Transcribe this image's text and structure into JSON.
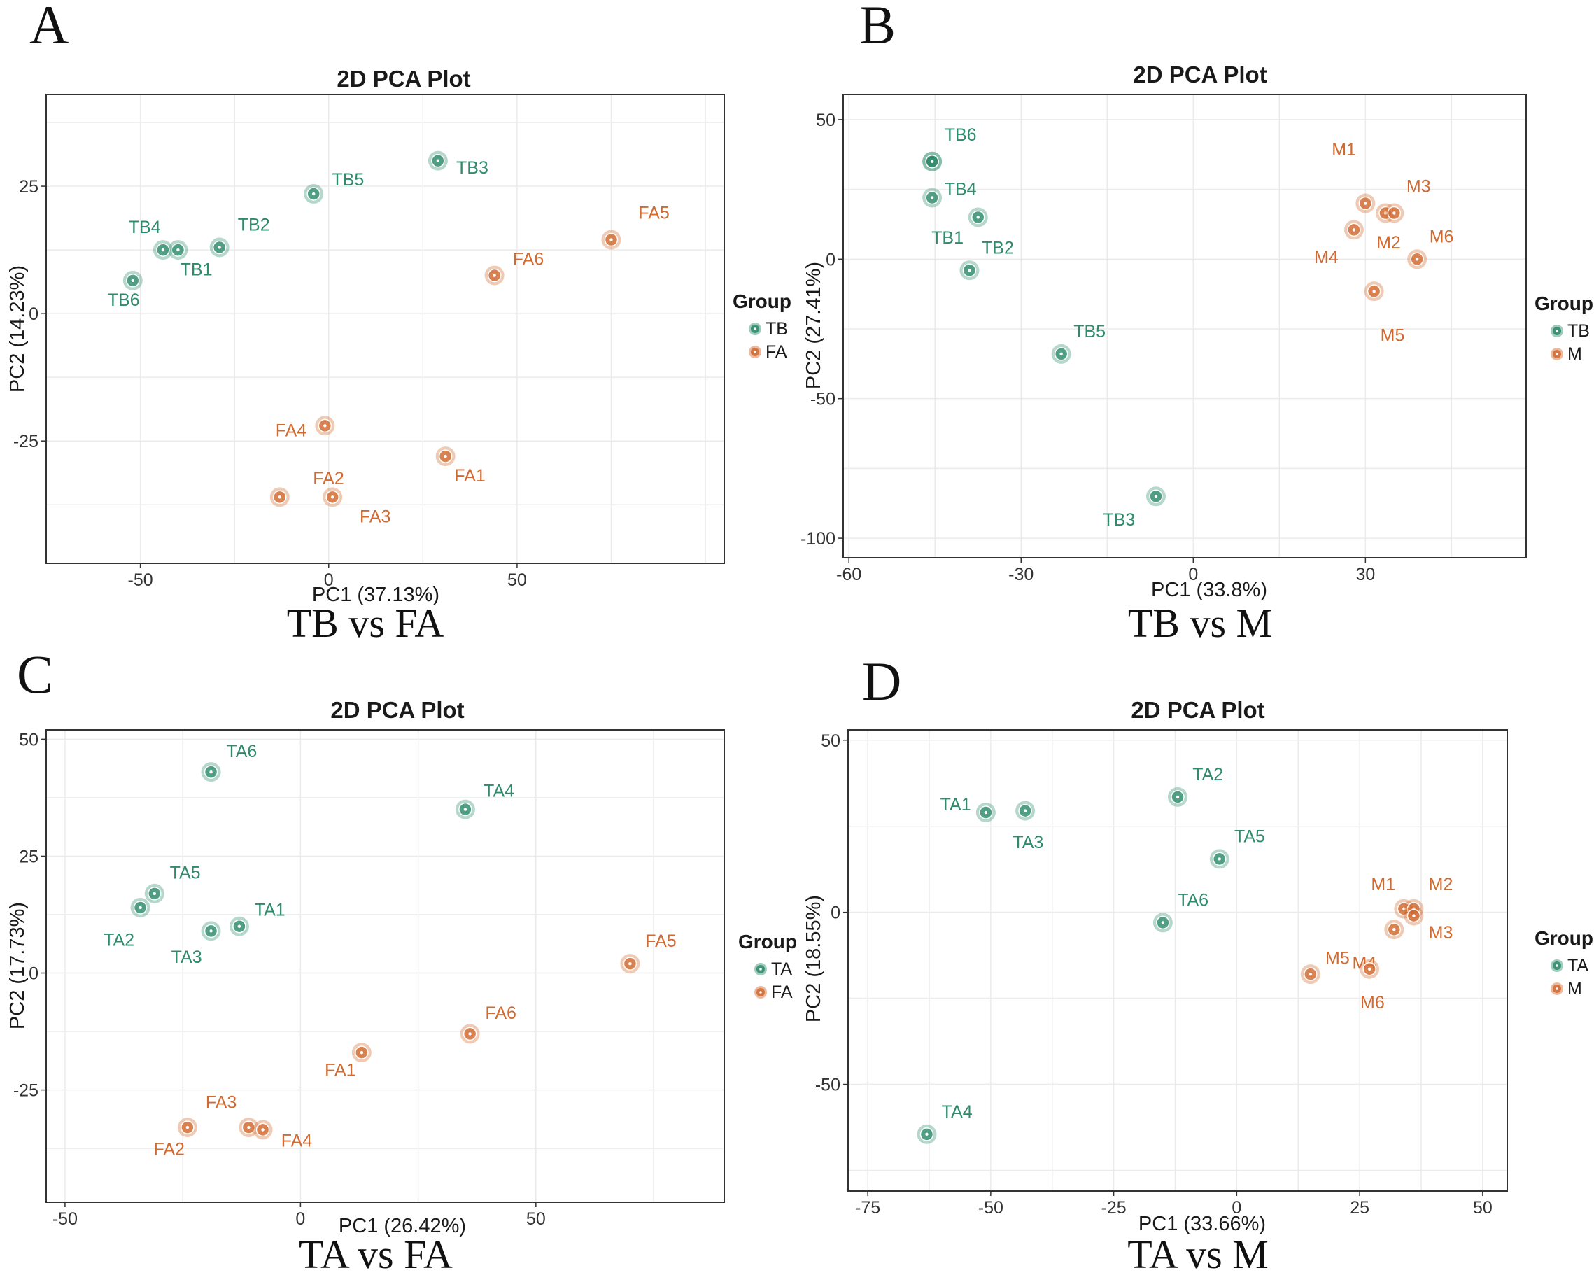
{
  "figure": {
    "background": "#ffffff"
  },
  "colors": {
    "TB": "#2e8b6c",
    "TA": "#2e8b6c",
    "FA": "#d2692f",
    "M": "#d2692f"
  },
  "chart_data": [
    {
      "panel": "A",
      "type": "scatter",
      "title": "2D PCA Plot",
      "xlabel": "PC1 (37.13%)",
      "ylabel": "PC2 (14.23%)",
      "caption": "TB vs FA",
      "xlim": [
        -75,
        105
      ],
      "ylim": [
        -49,
        43
      ],
      "xticks": [
        -50,
        0,
        50
      ],
      "yticks": [
        -25,
        0,
        25
      ],
      "legend": {
        "title": "Group",
        "position": "right",
        "entries": [
          "TB",
          "FA"
        ]
      },
      "series": [
        {
          "name": "TB",
          "points": [
            {
              "label": "TB1",
              "x": -40,
              "y": 12.5,
              "lx": 3,
              "ly": -6,
              "la": "middle"
            },
            {
              "label": "TB2",
              "x": -29,
              "y": 13,
              "lx": 3,
              "ly": 4,
              "la": "start"
            },
            {
              "label": "TB3",
              "x": 29,
              "y": 30,
              "lx": 3,
              "ly": -3,
              "la": "start"
            },
            {
              "label": "TB4",
              "x": -44,
              "y": 12.5,
              "lx": -3,
              "ly": 4,
              "la": "middle"
            },
            {
              "label": "TB5",
              "x": -4,
              "y": 23.5,
              "lx": 3,
              "ly": 2,
              "la": "start"
            },
            {
              "label": "TB6",
              "x": -52,
              "y": 6.5,
              "lx": -1.5,
              "ly": -6,
              "la": "middle"
            }
          ]
        },
        {
          "name": "FA",
          "points": [
            {
              "label": "FA1",
              "x": 31,
              "y": -28,
              "lx": 4,
              "ly": -6,
              "la": "middle"
            },
            {
              "label": "FA2",
              "x": -13,
              "y": -36,
              "lx": 8,
              "ly": 3,
              "la": "middle"
            },
            {
              "label": "FA3",
              "x": 1,
              "y": -36,
              "lx": 7,
              "ly": -6,
              "la": "middle"
            },
            {
              "label": "FA4",
              "x": -1,
              "y": -22,
              "lx": -3,
              "ly": -2.5,
              "la": "end"
            },
            {
              "label": "FA5",
              "x": 75,
              "y": 14.5,
              "lx": 7,
              "ly": 5,
              "la": "middle"
            },
            {
              "label": "FA6",
              "x": 44,
              "y": 7.5,
              "lx": 3,
              "ly": 2.5,
              "la": "start"
            }
          ]
        }
      ]
    },
    {
      "panel": "B",
      "type": "scatter",
      "title": "2D PCA Plot",
      "xlabel": "PC1 (33.8%)",
      "ylabel": "PC2 (27.41%)",
      "caption": "TB vs M",
      "xlim": [
        -61,
        58
      ],
      "ylim": [
        -107,
        59
      ],
      "xticks": [
        -60,
        -30,
        0,
        30
      ],
      "yticks": [
        -100,
        -50,
        0,
        50
      ],
      "legend": {
        "title": "Group",
        "position": "right",
        "entries": [
          "TB",
          "M"
        ]
      },
      "series": [
        {
          "name": "TB",
          "points": [
            {
              "label": "TB1",
              "x": -45.5,
              "y": 22,
              "lx": 2.5,
              "ly": -11,
              "la": "middle"
            },
            {
              "label": "TB2",
              "x": -39,
              "y": -4,
              "lx": 2,
              "ly": 4,
              "la": "start"
            },
            {
              "label": "TB3",
              "x": -6.5,
              "y": -85,
              "lx": -6,
              "ly": -7,
              "la": "middle"
            },
            {
              "label": "TB4",
              "x": -45.5,
              "y": 35,
              "lx": 2,
              "ly": -8,
              "la": "start"
            },
            {
              "label": "TB5",
              "x": -23,
              "y": -34,
              "lx": 2,
              "ly": 4,
              "la": "start"
            },
            {
              "label": "TB6",
              "x": -45.5,
              "y": 35,
              "lx": 2,
              "ly": 5,
              "la": "start"
            },
            {
              "label": "",
              "x": -37.5,
              "y": 15,
              "lx": 0,
              "ly": 0,
              "la": "start"
            }
          ]
        },
        {
          "name": "M",
          "points": [
            {
              "label": "M1",
              "x": 30,
              "y": 20,
              "lx": -3.5,
              "ly": 11.5,
              "la": "middle"
            },
            {
              "label": "M2",
              "x": 33.5,
              "y": 16.5,
              "lx": 0.5,
              "ly": -8.5,
              "la": "middle"
            },
            {
              "label": "M3",
              "x": 35,
              "y": 16.5,
              "lx": 2,
              "ly": 5,
              "la": "start"
            },
            {
              "label": "M4",
              "x": 28,
              "y": 10.5,
              "lx": -4.5,
              "ly": -8,
              "la": "middle"
            },
            {
              "label": "M5",
              "x": 31.5,
              "y": -11.5,
              "lx": 3,
              "ly": -12,
              "la": "middle"
            },
            {
              "label": "M6",
              "x": 39,
              "y": 0,
              "lx": 2,
              "ly": 4,
              "la": "start"
            }
          ]
        }
      ]
    },
    {
      "panel": "C",
      "type": "scatter",
      "title": "2D PCA Plot",
      "xlabel": "PC1 (26.42%)",
      "ylabel": "PC2 (17.73%)",
      "caption": "TA vs FA",
      "xlim": [
        -54,
        90
      ],
      "ylim": [
        -49,
        52
      ],
      "xticks": [
        -50,
        0,
        50
      ],
      "yticks": [
        -25,
        0,
        25,
        50
      ],
      "legend": {
        "title": "Group",
        "position": "right",
        "entries": [
          "TA",
          "FA"
        ]
      },
      "series": [
        {
          "name": "TA",
          "points": [
            {
              "label": "TA1",
              "x": -13,
              "y": 10,
              "lx": 2.5,
              "ly": 2.5,
              "la": "start"
            },
            {
              "label": "TA2",
              "x": -34,
              "y": 14,
              "lx": -3.5,
              "ly": -9,
              "la": "middle"
            },
            {
              "label": "TA3",
              "x": -19,
              "y": 9,
              "lx": -4,
              "ly": -7.5,
              "la": "middle"
            },
            {
              "label": "TA4",
              "x": 35,
              "y": 35,
              "lx": 3,
              "ly": 3,
              "la": "start"
            },
            {
              "label": "TA5",
              "x": -31,
              "y": 17,
              "lx": 2.5,
              "ly": 3.5,
              "la": "start"
            },
            {
              "label": "TA6",
              "x": -19,
              "y": 43,
              "lx": 2.5,
              "ly": 3.5,
              "la": "start"
            }
          ]
        },
        {
          "name": "FA",
          "points": [
            {
              "label": "FA1",
              "x": 13,
              "y": -17,
              "lx": -3.5,
              "ly": -5.5,
              "la": "middle"
            },
            {
              "label": "FA2",
              "x": -24,
              "y": -33,
              "lx": -3,
              "ly": -6.5,
              "la": "middle"
            },
            {
              "label": "FA3",
              "x": -11,
              "y": -33,
              "lx": -4.5,
              "ly": 4.5,
              "la": "middle"
            },
            {
              "label": "FA4",
              "x": -8,
              "y": -33.5,
              "lx": 3,
              "ly": -4,
              "la": "start"
            },
            {
              "label": "FA5",
              "x": 70,
              "y": 2,
              "lx": 2.5,
              "ly": 4,
              "la": "start"
            },
            {
              "label": "FA6",
              "x": 36,
              "y": -13,
              "lx": 2.5,
              "ly": 3.5,
              "la": "start"
            }
          ]
        }
      ]
    },
    {
      "panel": "D",
      "type": "scatter",
      "title": "2D PCA Plot",
      "xlabel": "PC1 (33.66%)",
      "ylabel": "PC2 (18.55%)",
      "caption": "TA vs M",
      "xlim": [
        -79,
        55
      ],
      "ylim": [
        -81,
        53
      ],
      "xticks": [
        -75,
        -50,
        -25,
        0,
        25,
        50
      ],
      "yticks": [
        -50,
        0,
        50
      ],
      "legend": {
        "title": "Group",
        "position": "right",
        "entries": [
          "TA",
          "M"
        ]
      },
      "series": [
        {
          "name": "TA",
          "points": [
            {
              "label": "TA1",
              "x": -51,
              "y": 29,
              "lx": -2.5,
              "ly": 0.5,
              "la": "end"
            },
            {
              "label": "TA2",
              "x": -12,
              "y": 33.5,
              "lx": 2.5,
              "ly": 4,
              "la": "start"
            },
            {
              "label": "TA3",
              "x": -43,
              "y": 29.5,
              "lx": 0.5,
              "ly": -9,
              "la": "middle"
            },
            {
              "label": "TA4",
              "x": -63,
              "y": -64.5,
              "lx": 2.5,
              "ly": 4,
              "la": "start"
            },
            {
              "label": "TA5",
              "x": -3.5,
              "y": 15.5,
              "lx": 2.5,
              "ly": 4,
              "la": "start"
            },
            {
              "label": "TA6",
              "x": -15,
              "y": -3,
              "lx": 2.5,
              "ly": 4,
              "la": "start"
            }
          ]
        },
        {
          "name": "M",
          "points": [
            {
              "label": "M1",
              "x": 34,
              "y": 1,
              "lx": -3.5,
              "ly": 4.5,
              "la": "middle"
            },
            {
              "label": "M2",
              "x": 36,
              "y": 1,
              "lx": 2.5,
              "ly": 4.5,
              "la": "start"
            },
            {
              "label": "M3",
              "x": 36,
              "y": -1,
              "lx": 2.5,
              "ly": -5.5,
              "la": "start"
            },
            {
              "label": "M4",
              "x": 32,
              "y": -5,
              "lx": -5,
              "ly": -9.5,
              "la": "middle"
            },
            {
              "label": "M5",
              "x": 15,
              "y": -18,
              "lx": 2.5,
              "ly": 2.5,
              "la": "start"
            },
            {
              "label": "M6",
              "x": 27,
              "y": -16.5,
              "lx": 0.5,
              "ly": -9.5,
              "la": "middle"
            }
          ]
        }
      ]
    }
  ]
}
